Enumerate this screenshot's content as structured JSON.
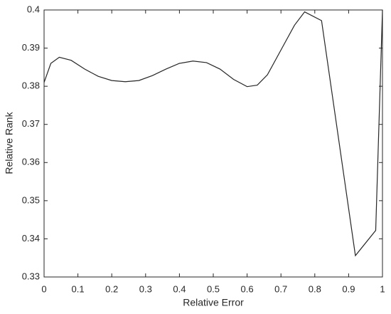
{
  "chart_data": {
    "type": "line",
    "x_label": "Relative Error",
    "y_label": "Relative Rank",
    "series": [
      {
        "color": "#262626",
        "x": [
          0,
          0.02,
          0.045,
          0.08,
          0.12,
          0.16,
          0.2,
          0.24,
          0.28,
          0.32,
          0.36,
          0.4,
          0.44,
          0.48,
          0.52,
          0.56,
          0.6,
          0.63,
          0.66,
          0.7,
          0.74,
          0.77,
          0.82,
          0.92,
          0.98,
          1.0
        ],
        "values": [
          0.381,
          0.386,
          0.3876,
          0.3868,
          0.3845,
          0.3826,
          0.3815,
          0.3812,
          0.3815,
          0.3828,
          0.3845,
          0.386,
          0.3866,
          0.3862,
          0.3845,
          0.3818,
          0.3799,
          0.3803,
          0.383,
          0.3895,
          0.396,
          0.3995,
          0.3972,
          0.3356,
          0.3422,
          0.4
        ]
      }
    ],
    "xlim": [
      0,
      1
    ],
    "xticks": [
      0,
      0.1,
      0.2,
      0.3,
      0.4,
      0.5,
      0.6,
      0.7,
      0.8,
      0.9,
      1
    ],
    "ylim": [
      0.33,
      0.4
    ],
    "yticks": [
      0.33,
      0.34,
      0.35,
      0.36,
      0.37,
      0.38,
      0.39,
      0.4
    ],
    "grid": false
  }
}
